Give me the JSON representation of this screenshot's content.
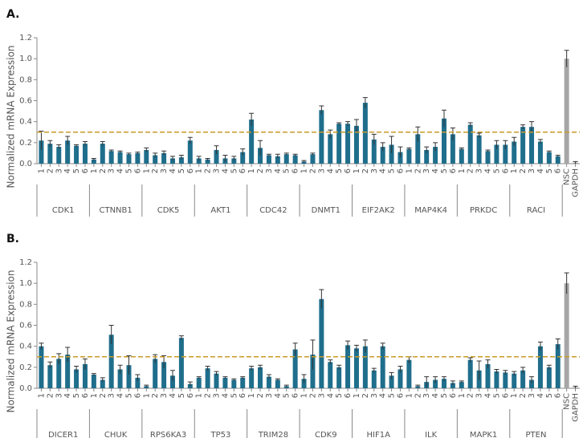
{
  "chart_data": [
    {
      "type": "bar",
      "title": "A.",
      "ylabel": "Normalized mRNA Expression",
      "ylim": [
        0,
        1.2
      ],
      "yticks": [
        {
          "value": 0,
          "label": "0.0"
        },
        0.2,
        0.4,
        0.6,
        0.8,
        {
          "value": 1,
          "label": "1.0"
        },
        1.2
      ],
      "grid": false,
      "color": "#1f6e8c",
      "reference_line": 0.3,
      "reference_color": "#c89b2a",
      "groups": [
        {
          "name": "CDK1",
          "categories": [
            "1",
            "2",
            "3",
            "4",
            "5",
            "6"
          ],
          "values": [
            0.22,
            0.19,
            0.16,
            0.22,
            0.17,
            0.19
          ],
          "errors": [
            0.09,
            0.03,
            0.02,
            0.04,
            0.01,
            0.02
          ]
        },
        {
          "name": "CTNNB1",
          "categories": [
            "1",
            "2",
            "3",
            "4",
            "5",
            "6"
          ],
          "values": [
            0.04,
            0.19,
            0.12,
            0.11,
            0.09,
            0.1
          ],
          "errors": [
            0.01,
            0.02,
            0.01,
            0.01,
            0.01,
            0.01
          ]
        },
        {
          "name": "CDK5",
          "categories": [
            "1",
            "2",
            "3",
            "4",
            "5",
            "6"
          ],
          "values": [
            0.13,
            0.08,
            0.1,
            0.05,
            0.06,
            0.22
          ],
          "errors": [
            0.02,
            0.02,
            0.02,
            0.02,
            0.02,
            0.03
          ]
        },
        {
          "name": "AKT1",
          "categories": [
            "1",
            "2",
            "3",
            "4",
            "5",
            "6"
          ],
          "values": [
            0.05,
            0.04,
            0.13,
            0.05,
            0.05,
            0.11
          ],
          "errors": [
            0.02,
            0.01,
            0.04,
            0.03,
            0.02,
            0.03
          ]
        },
        {
          "name": "CDC42",
          "categories": [
            "1",
            "2",
            "3",
            "4",
            "5",
            "6"
          ],
          "values": [
            0.42,
            0.15,
            0.08,
            0.07,
            0.09,
            0.08
          ],
          "errors": [
            0.06,
            0.07,
            0.01,
            0.02,
            0.01,
            0.01
          ]
        },
        {
          "name": "DNMT1",
          "categories": [
            "1",
            "2",
            "3",
            "4",
            "5",
            "6"
          ],
          "values": [
            0.02,
            0.09,
            0.51,
            0.28,
            0.38,
            0.38
          ],
          "errors": [
            0.01,
            0.01,
            0.04,
            0.04,
            0.01,
            0.02
          ]
        },
        {
          "name": "EIF2AK2",
          "categories": [
            "1",
            "2",
            "3",
            "4",
            "5",
            "6"
          ],
          "values": [
            0.36,
            0.58,
            0.23,
            0.16,
            0.18,
            0.11
          ],
          "errors": [
            0.06,
            0.05,
            0.05,
            0.04,
            0.08,
            0.05
          ]
        },
        {
          "name": "MAP4K4",
          "categories": [
            "1",
            "2",
            "3",
            "4",
            "5",
            "6"
          ],
          "values": [
            0.14,
            0.28,
            0.13,
            0.16,
            0.43,
            0.28
          ],
          "errors": [
            0.01,
            0.07,
            0.03,
            0.04,
            0.08,
            0.06
          ]
        },
        {
          "name": "PRKDC",
          "categories": [
            "1",
            "2",
            "3",
            "4",
            "5",
            "6"
          ],
          "values": [
            0.14,
            0.37,
            0.27,
            0.12,
            0.18,
            0.18
          ],
          "errors": [
            0.01,
            0.02,
            0.02,
            0.01,
            0.04,
            0.04
          ]
        },
        {
          "name": "RACI",
          "categories": [
            "1",
            "2",
            "3",
            "4",
            "5",
            "6"
          ],
          "values": [
            0.21,
            0.35,
            0.35,
            0.21,
            0.11,
            0.07
          ],
          "errors": [
            0.04,
            0.02,
            0.05,
            0.02,
            0.01,
            0.01
          ]
        }
      ],
      "controls": {
        "categories": [
          "NSC",
          "GAPDH"
        ],
        "values": [
          1.0,
          0.01
        ],
        "errors": [
          0.08,
          0.01
        ],
        "color": "#a6a6a6"
      }
    },
    {
      "type": "bar",
      "title": "B.",
      "ylabel": "Normalized mRNA Expression",
      "ylim": [
        0,
        1.2
      ],
      "yticks": [
        {
          "value": 0,
          "label": "0.0"
        },
        0.2,
        0.4,
        0.6,
        0.8,
        {
          "value": 1,
          "label": "1.0"
        },
        1.2
      ],
      "grid": false,
      "color": "#1f6e8c",
      "reference_line": 0.3,
      "reference_color": "#c89b2a",
      "groups": [
        {
          "name": "DICER1",
          "categories": [
            "1",
            "2",
            "3",
            "4",
            "5",
            "6"
          ],
          "values": [
            0.4,
            0.22,
            0.28,
            0.32,
            0.18,
            0.23
          ],
          "errors": [
            0.03,
            0.03,
            0.05,
            0.07,
            0.03,
            0.05
          ]
        },
        {
          "name": "CHUK",
          "categories": [
            "1",
            "2",
            "3",
            "4",
            "5",
            "6"
          ],
          "values": [
            0.13,
            0.08,
            0.51,
            0.18,
            0.22,
            0.1
          ],
          "errors": [
            0.01,
            0.02,
            0.09,
            0.04,
            0.09,
            0.03
          ]
        },
        {
          "name": "RPS6KA3",
          "categories": [
            "1",
            "2",
            "3",
            "4",
            "5",
            "6"
          ],
          "values": [
            0.02,
            0.28,
            0.25,
            0.12,
            0.48,
            0.04
          ],
          "errors": [
            0.01,
            0.04,
            0.06,
            0.05,
            0.02,
            0.02
          ]
        },
        {
          "name": "TP53",
          "categories": [
            "1",
            "2",
            "3",
            "4",
            "5",
            "6"
          ],
          "values": [
            0.1,
            0.19,
            0.14,
            0.1,
            0.08,
            0.1
          ],
          "errors": [
            0.01,
            0.02,
            0.02,
            0.01,
            0.01,
            0.01
          ]
        },
        {
          "name": "TRIM28",
          "categories": [
            "1",
            "2",
            "3",
            "4",
            "5",
            "6"
          ],
          "values": [
            0.19,
            0.2,
            0.11,
            0.08,
            0.02,
            0.37
          ],
          "errors": [
            0.02,
            0.02,
            0.02,
            0.01,
            0.01,
            0.06
          ]
        },
        {
          "name": "CDK9",
          "categories": [
            "1",
            "2",
            "3",
            "4",
            "5",
            "6"
          ],
          "values": [
            0.09,
            0.32,
            0.85,
            0.25,
            0.2,
            0.41
          ],
          "errors": [
            0.04,
            0.14,
            0.09,
            0.02,
            0.02,
            0.04
          ]
        },
        {
          "name": "HIF1A",
          "categories": [
            "1",
            "2",
            "3",
            "4",
            "5",
            "6"
          ],
          "values": [
            0.38,
            0.4,
            0.17,
            0.4,
            0.12,
            0.18
          ],
          "errors": [
            0.03,
            0.06,
            0.02,
            0.03,
            0.03,
            0.03
          ]
        },
        {
          "name": "ILK",
          "categories": [
            "1",
            "2",
            "3",
            "4",
            "5",
            "6"
          ],
          "values": [
            0.27,
            0.02,
            0.06,
            0.08,
            0.09,
            0.05
          ],
          "errors": [
            0.03,
            0.01,
            0.05,
            0.03,
            0.02,
            0.02
          ]
        },
        {
          "name": "MAPK1",
          "categories": [
            "1",
            "2",
            "3",
            "4",
            "5",
            "6"
          ],
          "values": [
            0.06,
            0.27,
            0.17,
            0.23,
            0.16,
            0.15
          ],
          "errors": [
            0.01,
            0.02,
            0.09,
            0.04,
            0.02,
            0.02
          ]
        },
        {
          "name": "PTEN",
          "categories": [
            "1",
            "2",
            "3",
            "4",
            "5",
            "6"
          ],
          "values": [
            0.14,
            0.17,
            0.08,
            0.4,
            0.2,
            0.42
          ],
          "errors": [
            0.02,
            0.03,
            0.03,
            0.04,
            0.02,
            0.05
          ]
        }
      ],
      "controls": {
        "categories": [
          "NSC",
          "GAPDH"
        ],
        "values": [
          1.0,
          0.01
        ],
        "errors": [
          0.1,
          0.01
        ],
        "color": "#a6a6a6"
      }
    }
  ]
}
